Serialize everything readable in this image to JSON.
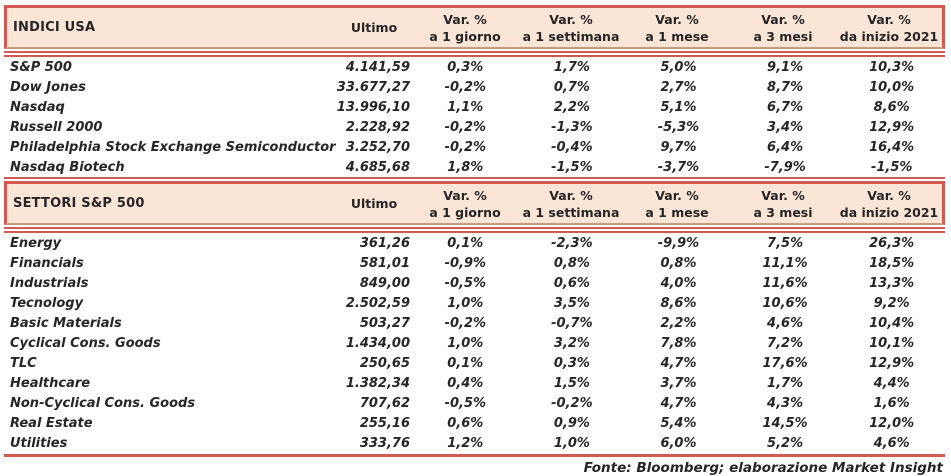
{
  "header": {
    "ultimo": "Ultimo",
    "var_label": "Var. %",
    "periods": [
      "a 1 giorno",
      "a 1 settimana",
      "a 1 mese",
      "a 3 mesi",
      "da inizio 2021"
    ]
  },
  "chart_data": [
    {
      "type": "table",
      "title": "INDICI USA",
      "columns": [
        "",
        "Ultimo",
        "Var. % a 1 giorno",
        "Var. % a 1 settimana",
        "Var. % a 1 mese",
        "Var. % a 3 mesi",
        "Var. % da inizio 2021"
      ],
      "rows": [
        [
          "S&P 500",
          "4.141,59",
          "0,3%",
          "1,7%",
          "5,0%",
          "9,1%",
          "10,3%"
        ],
        [
          "Dow Jones",
          "33.677,27",
          "-0,2%",
          "0,7%",
          "2,7%",
          "8,7%",
          "10,0%"
        ],
        [
          "Nasdaq",
          "13.996,10",
          "1,1%",
          "2,2%",
          "5,1%",
          "6,7%",
          "8,6%"
        ],
        [
          "Russell 2000",
          "2.228,92",
          "-0,2%",
          "-1,3%",
          "-5,3%",
          "3,4%",
          "12,9%"
        ],
        [
          "Philadelphia Stock Exchange Semiconductor",
          "3.252,70",
          "-0,2%",
          "-0,4%",
          "9,7%",
          "6,4%",
          "16,4%"
        ],
        [
          "Nasdaq Biotech",
          "4.685,68",
          "1,8%",
          "-1,5%",
          "-3,7%",
          "-7,9%",
          "-1,5%"
        ]
      ]
    },
    {
      "type": "table",
      "title": "SETTORI S&P 500",
      "columns": [
        "",
        "Ultimo",
        "Var. % a 1 giorno",
        "Var. % a 1 settimana",
        "Var. % a 1 mese",
        "Var. % a 3 mesi",
        "Var. % da inizio 2021"
      ],
      "rows": [
        [
          "Energy",
          "361,26",
          "0,1%",
          "-2,3%",
          "-9,9%",
          "7,5%",
          "26,3%"
        ],
        [
          "Financials",
          "581,01",
          "-0,9%",
          "0,8%",
          "0,8%",
          "11,1%",
          "18,5%"
        ],
        [
          "Industrials",
          "849,00",
          "-0,5%",
          "0,6%",
          "4,0%",
          "11,6%",
          "13,3%"
        ],
        [
          "Tecnology",
          "2.502,59",
          "1,0%",
          "3,5%",
          "8,6%",
          "10,6%",
          "9,2%"
        ],
        [
          "Basic Materials",
          "503,27",
          "-0,2%",
          "-0,7%",
          "2,2%",
          "4,6%",
          "10,4%"
        ],
        [
          "Cyclical Cons. Goods",
          "1.434,00",
          "1,0%",
          "3,2%",
          "7,8%",
          "7,2%",
          "10,1%"
        ],
        [
          "TLC",
          "250,65",
          "0,1%",
          "0,3%",
          "4,7%",
          "17,6%",
          "12,9%"
        ],
        [
          "Healthcare",
          "1.382,34",
          "0,4%",
          "1,5%",
          "3,7%",
          "1,7%",
          "4,4%"
        ],
        [
          "Non-Cyclical Cons. Goods",
          "707,62",
          "-0,5%",
          "-0,2%",
          "4,7%",
          "4,3%",
          "1,6%"
        ],
        [
          "Real Estate",
          "255,16",
          "0,6%",
          "0,9%",
          "5,4%",
          "14,5%",
          "12,0%"
        ],
        [
          "Utilities",
          "333,76",
          "1,2%",
          "1,0%",
          "6,0%",
          "5,2%",
          "4,6%"
        ]
      ]
    }
  ],
  "footer": {
    "source": "Fonte: Bloomberg; elaborazione Market Insight"
  },
  "colors": {
    "accent_red": "#d25a50",
    "band_bg": "#fbe5d6",
    "tan_rule": "#c79b82",
    "text": "#262626"
  }
}
